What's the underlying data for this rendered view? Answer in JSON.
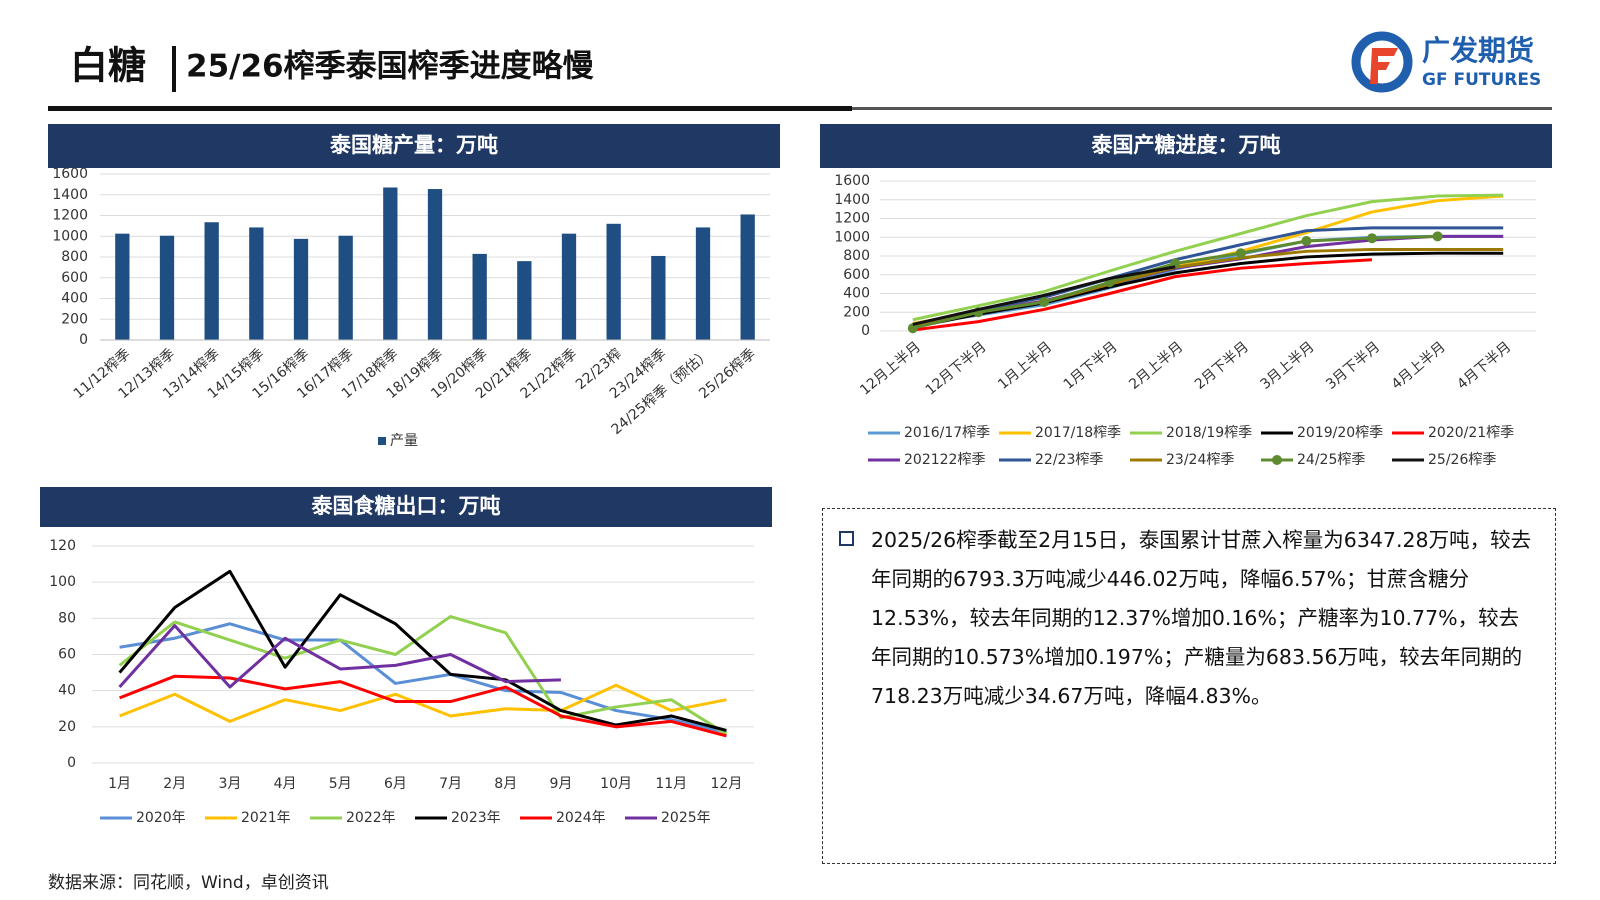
{
  "header": {
    "title": "白糖",
    "subtitle": "25/26榨季泰国榨季进度略慢"
  },
  "logo": {
    "name": "广发期货",
    "name_en": "GF FUTURES"
  },
  "text_box": {
    "paragraph": "2025/26榨季截至2月15日，泰国累计甘蔗入榨量为6347.28万吨，较去年同期的6793.3万吨减少446.02万吨，降幅6.57%；甘蔗含糖分12.53%，较去年同期的12.37%增加0.16%；产糖率为10.77%，较去年同期的10.573%增加0.197%；产糖量为683.56万吨，较去年同期的718.23万吨减少34.67万吨，降幅4.83%。"
  },
  "source": "数据来源：同花顺，Wind，卓创资讯",
  "chart_data": [
    {
      "type": "bar",
      "title": "泰国糖产量：万吨",
      "categories": [
        "11/12榨季",
        "12/13榨季",
        "13/14榨季",
        "14/15榨季",
        "15/16榨季",
        "16/17榨季",
        "17/18榨季",
        "18/19榨季",
        "19/20榨季",
        "20/21榨季",
        "21/22榨季",
        "22/23榨",
        "23/24榨季",
        "24/25榨季（预估）",
        "25/26榨季"
      ],
      "series": [
        {
          "name": "产量",
          "color": "#1f4e82",
          "values": [
            1025,
            1005,
            1135,
            1085,
            975,
            1005,
            1470,
            1455,
            830,
            760,
            1025,
            1120,
            810,
            1085,
            1210
          ]
        }
      ],
      "ylim": [
        0,
        1600
      ],
      "yticks": [
        0,
        200,
        400,
        600,
        800,
        1000,
        1200,
        1400,
        1600
      ],
      "grid": true,
      "legend": "bottom"
    },
    {
      "type": "line",
      "title": "泰国产糖进度：万吨",
      "categories": [
        "12月上半月",
        "12月下半月",
        "1月上半月",
        "1月下半月",
        "2月上半月",
        "2月下半月",
        "3月上半月",
        "3月下半月",
        "4月上半月",
        "4月下半月"
      ],
      "series": [
        {
          "name": "2016/17榨季",
          "color": "#5b9bd5",
          "values": [
            60,
            170,
            280,
            460,
            660,
            820,
            960,
            1000,
            1010,
            1010
          ]
        },
        {
          "name": "2017/18榨季",
          "color": "#ffc000",
          "values": [
            80,
            200,
            320,
            500,
            680,
            850,
            1050,
            1270,
            1390,
            1440
          ]
        },
        {
          "name": "2018/19榨季",
          "color": "#92d050",
          "values": [
            120,
            270,
            420,
            640,
            850,
            1040,
            1230,
            1380,
            1440,
            1450
          ]
        },
        {
          "name": "2019/20榨季",
          "color": "#000000",
          "values": [
            40,
            180,
            300,
            470,
            620,
            720,
            790,
            820,
            830,
            830
          ]
        },
        {
          "name": "2020/21榨季",
          "color": "#ff0000",
          "values": [
            10,
            100,
            230,
            400,
            580,
            670,
            720,
            760,
            null,
            null
          ]
        },
        {
          "name": "202122榨季",
          "color": "#7030a0",
          "values": [
            50,
            200,
            320,
            500,
            670,
            770,
            900,
            970,
            1010,
            1010
          ]
        },
        {
          "name": "22/23榨季",
          "color": "#2f5597",
          "values": [
            70,
            220,
            360,
            560,
            760,
            920,
            1070,
            1100,
            1100,
            1100
          ]
        },
        {
          "name": "23/24榨季",
          "color": "#9c7a00",
          "values": [
            60,
            200,
            310,
            500,
            680,
            780,
            850,
            870,
            870,
            870
          ]
        },
        {
          "name": "24/25榨季",
          "color": "#5e8b2f",
          "markers": true,
          "values": [
            30,
            200,
            310,
            520,
            720,
            830,
            960,
            990,
            1010,
            null
          ]
        },
        {
          "name": "25/26榨季",
          "color": "#111111",
          "values": [
            70,
            230,
            380,
            560,
            684,
            null,
            null,
            null,
            null,
            null
          ]
        }
      ],
      "ylim": [
        0,
        1600
      ],
      "yticks": [
        0,
        200,
        400,
        600,
        800,
        1000,
        1200,
        1400,
        1600
      ],
      "grid": true,
      "legend": "bottom"
    },
    {
      "type": "line",
      "title": "泰国食糖出口：万吨",
      "categories": [
        "1月",
        "2月",
        "3月",
        "4月",
        "5月",
        "6月",
        "7月",
        "8月",
        "9月",
        "10月",
        "11月",
        "12月"
      ],
      "series": [
        {
          "name": "2020年",
          "color": "#5b8fd5",
          "values": [
            64,
            69,
            77,
            68,
            68,
            44,
            49,
            40,
            39,
            29,
            24,
            17
          ]
        },
        {
          "name": "2021年",
          "color": "#ffc000",
          "values": [
            26,
            38,
            23,
            35,
            29,
            38,
            26,
            30,
            29,
            43,
            29,
            35
          ]
        },
        {
          "name": "2022年",
          "color": "#92d050",
          "values": [
            54,
            78,
            68,
            58,
            68,
            60,
            81,
            72,
            25,
            31,
            35,
            16
          ]
        },
        {
          "name": "2023年",
          "color": "#000000",
          "values": [
            50,
            86,
            106,
            53,
            93,
            77,
            49,
            46,
            29,
            21,
            26,
            18
          ]
        },
        {
          "name": "2024年",
          "color": "#ff0000",
          "values": [
            36,
            48,
            47,
            41,
            45,
            34,
            34,
            42,
            26,
            20,
            23,
            15
          ]
        },
        {
          "name": "2025年",
          "color": "#7030a0",
          "values": [
            42,
            76,
            42,
            69,
            52,
            54,
            60,
            45,
            46,
            null,
            null,
            null
          ]
        }
      ],
      "ylim": [
        0,
        120
      ],
      "yticks": [
        0,
        20,
        40,
        60,
        80,
        100,
        120
      ],
      "grid": true,
      "legend": "bottom"
    }
  ]
}
